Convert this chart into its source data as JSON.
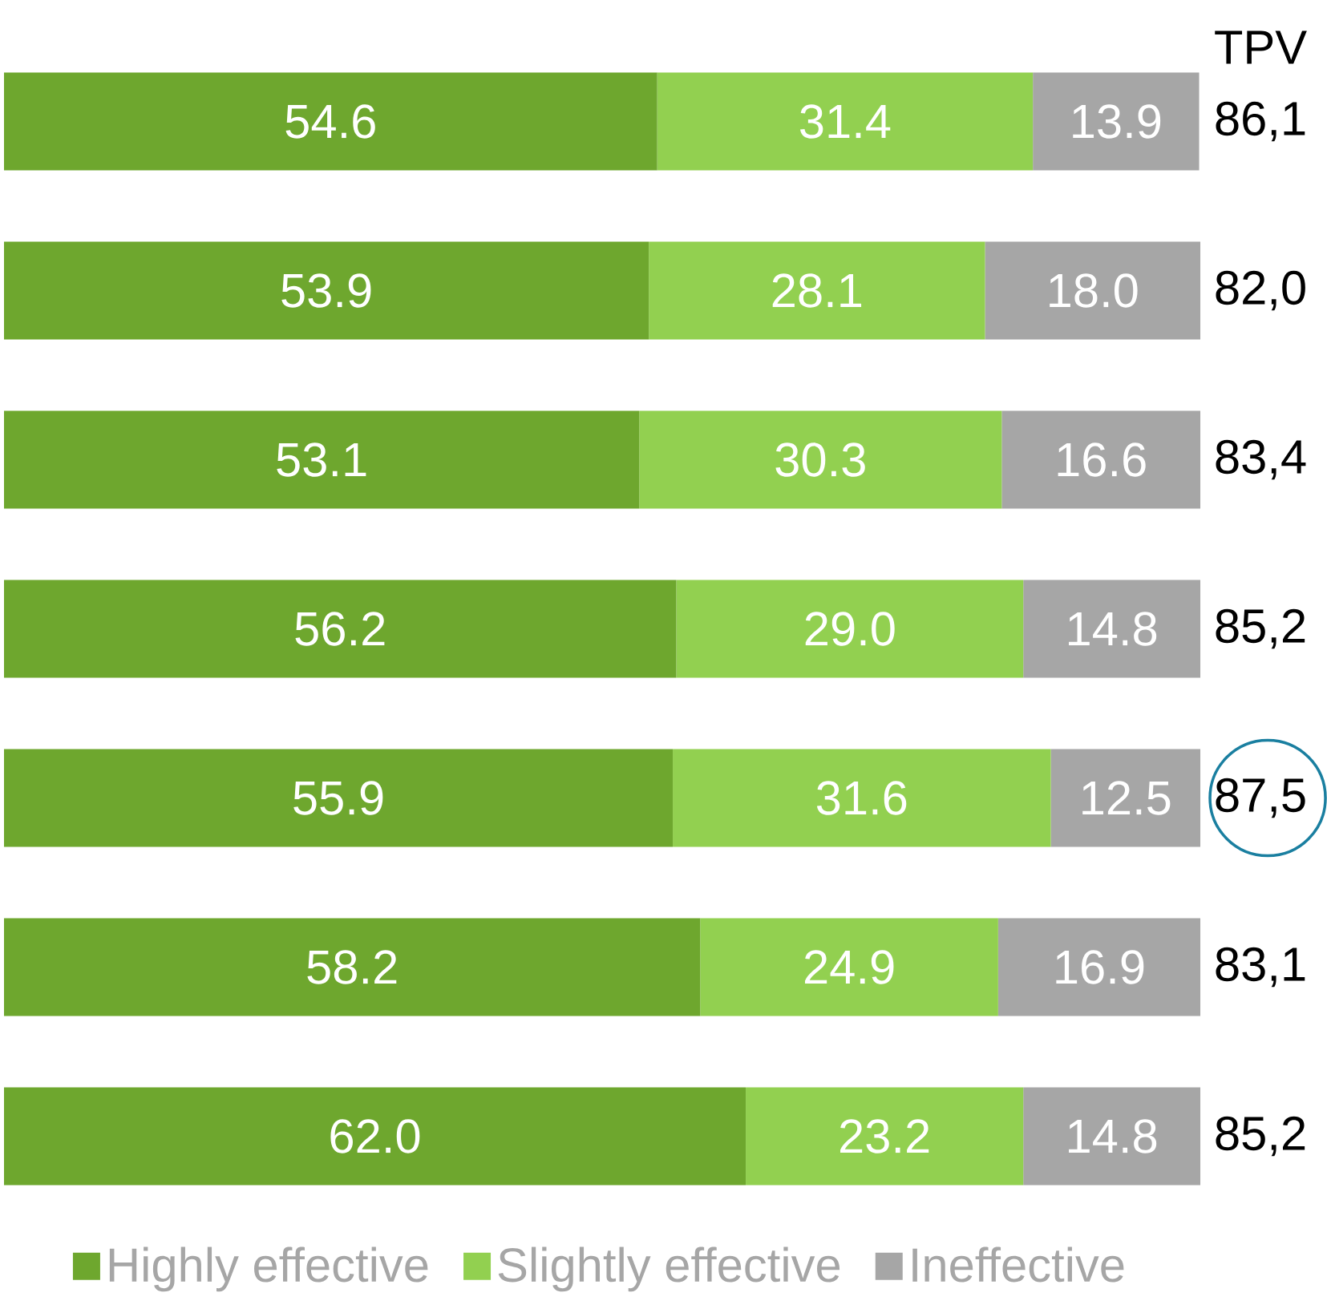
{
  "chart_data": {
    "type": "bar",
    "orientation": "horizontal",
    "stacked": true,
    "categories": [
      null,
      null,
      null,
      null,
      null,
      null,
      null
    ],
    "series": [
      {
        "name": "Highly effective",
        "color": "#6ea72e",
        "values": [
          54.6,
          53.9,
          53.1,
          56.2,
          55.9,
          58.2,
          62.0
        ],
        "value_labels": [
          "54.6",
          "53.9",
          "53.1",
          "56.2",
          "55.9",
          "58.2",
          "62.0"
        ]
      },
      {
        "name": "Slightly effective",
        "color": "#92d050",
        "values": [
          31.4,
          28.1,
          30.3,
          29.0,
          31.6,
          24.9,
          23.2
        ],
        "value_labels": [
          "31.4",
          "28.1",
          "30.3",
          "29.0",
          "31.6",
          "24.9",
          "23.2"
        ]
      },
      {
        "name": "Ineffective",
        "color": "#a6a6a6",
        "values": [
          13.9,
          18.0,
          16.6,
          14.8,
          12.5,
          16.9,
          14.8
        ],
        "value_labels": [
          "13.9",
          "18.0",
          "16.6",
          "14.8",
          "12.5",
          "16.9",
          "14.8"
        ]
      }
    ],
    "legend": "bottom",
    "annotations": [
      "TPV",
      "86,1",
      "82,0",
      "83,4",
      "85,2",
      "87,5",
      "83,1",
      "85,2"
    ]
  }
}
